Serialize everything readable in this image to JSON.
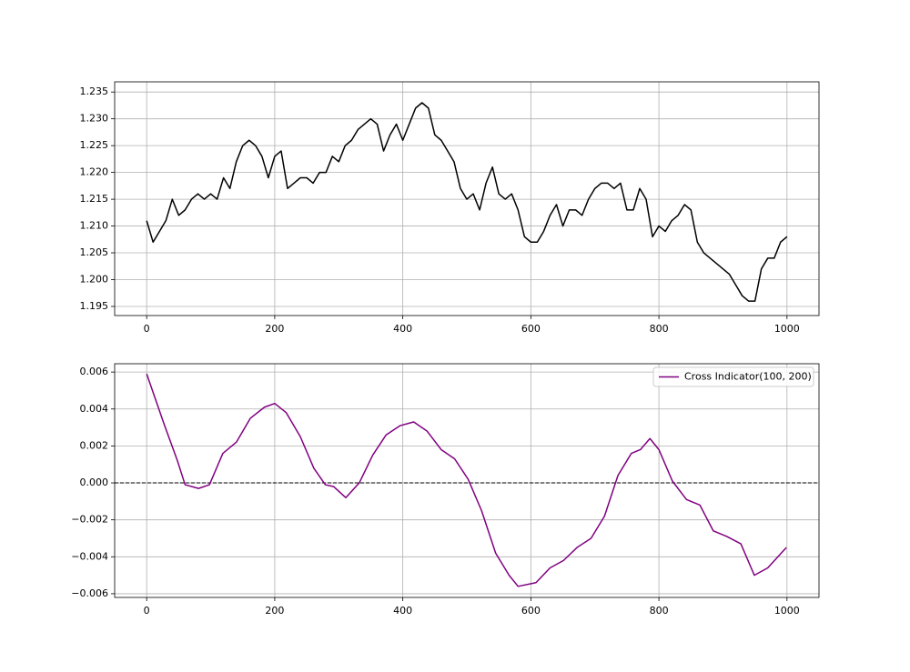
{
  "chart_data": [
    {
      "type": "line",
      "color": "#000000",
      "grid": true,
      "xlim": [
        -50,
        1050
      ],
      "ylim": [
        1.1933,
        1.2369
      ],
      "xticks": [
        0,
        200,
        400,
        600,
        800,
        1000
      ],
      "yticks": [
        1.195,
        {
          "value": 1.2,
          "label": "1.200"
        },
        1.205,
        {
          "value": 1.21,
          "label": "1.210"
        },
        1.215,
        {
          "value": 1.22,
          "label": "1.220"
        },
        1.225,
        {
          "value": 1.23,
          "label": "1.230"
        },
        1.235
      ],
      "x": [
        0,
        10,
        20,
        30,
        40,
        50,
        60,
        70,
        80,
        90,
        100,
        110,
        120,
        130,
        140,
        150,
        160,
        170,
        180,
        190,
        200,
        210,
        220,
        230,
        240,
        250,
        260,
        270,
        280,
        290,
        300,
        310,
        320,
        330,
        340,
        350,
        360,
        370,
        380,
        390,
        400,
        410,
        420,
        430,
        440,
        450,
        460,
        470,
        480,
        490,
        500,
        510,
        520,
        530,
        540,
        550,
        560,
        570,
        580,
        590,
        600,
        610,
        620,
        630,
        640,
        650,
        660,
        670,
        680,
        690,
        700,
        710,
        720,
        730,
        740,
        750,
        760,
        770,
        780,
        790,
        800,
        810,
        820,
        830,
        840,
        850,
        860,
        870,
        880,
        890,
        900,
        910,
        920,
        930,
        940,
        950,
        960,
        970,
        980,
        990,
        1000
      ],
      "values": [
        1.211,
        1.207,
        1.209,
        1.211,
        1.215,
        1.212,
        1.213,
        1.215,
        1.216,
        1.215,
        1.216,
        1.215,
        1.219,
        1.217,
        1.222,
        1.225,
        1.226,
        1.225,
        1.223,
        1.219,
        1.223,
        1.224,
        1.217,
        1.218,
        1.219,
        1.219,
        1.218,
        1.22,
        1.22,
        1.223,
        1.222,
        1.225,
        1.226,
        1.228,
        1.229,
        1.23,
        1.229,
        1.224,
        1.227,
        1.229,
        1.226,
        1.229,
        1.232,
        1.233,
        1.232,
        1.227,
        1.226,
        1.224,
        1.222,
        1.217,
        1.215,
        1.216,
        1.213,
        1.218,
        1.221,
        1.216,
        1.215,
        1.216,
        1.213,
        1.208,
        1.207,
        1.207,
        1.209,
        1.212,
        1.214,
        1.21,
        1.213,
        1.213,
        1.212,
        1.215,
        1.217,
        1.218,
        1.218,
        1.217,
        1.218,
        1.213,
        1.213,
        1.217,
        1.215,
        1.208,
        1.21,
        1.209,
        1.211,
        1.212,
        1.214,
        1.213,
        1.207,
        1.205,
        1.204,
        1.203,
        1.202,
        1.201,
        1.199,
        1.197,
        1.196,
        1.196,
        1.202,
        1.204,
        1.204,
        1.207,
        1.208
      ]
    },
    {
      "type": "line",
      "grid": true,
      "legend": "upper right",
      "hline": 0,
      "xlim": [
        -50,
        1050
      ],
      "ylim": [
        -0.0062,
        0.00645
      ],
      "xticks": [
        0,
        200,
        400,
        600,
        800,
        1000
      ],
      "yticks": [
        {
          "value": -0.006,
          "label": "−0.006"
        },
        {
          "value": -0.004,
          "label": "−0.004"
        },
        {
          "value": -0.002,
          "label": "−0.002"
        },
        {
          "value": 0,
          "label": "0.000"
        },
        0.002,
        0.004,
        0.006
      ],
      "x": [
        0,
        27,
        48,
        60,
        81,
        98,
        119,
        140,
        162,
        184,
        200,
        218,
        240,
        261,
        279,
        292,
        311,
        332,
        353,
        374,
        396,
        417,
        438,
        460,
        481,
        502,
        523,
        545,
        566,
        580,
        608,
        630,
        651,
        672,
        694,
        715,
        736,
        757,
        771,
        786,
        800,
        821,
        843,
        864,
        885,
        906,
        928,
        949,
        970,
        999
      ],
      "series": [
        {
          "name": "Cross Indicator(100, 200)",
          "color": "#800080",
          "values": [
            0.0059,
            0.0032,
            0.0012,
            -0.0001,
            -0.0003,
            -0.0001,
            0.0016,
            0.0022,
            0.0035,
            0.0041,
            0.0043,
            0.0038,
            0.0025,
            0.0008,
            -0.0001,
            -0.0002,
            -0.0008,
            0.0,
            0.0015,
            0.0026,
            0.0031,
            0.0033,
            0.0028,
            0.0018,
            0.0013,
            0.0002,
            -0.0015,
            -0.0038,
            -0.005,
            -0.0056,
            -0.0054,
            -0.0046,
            -0.0042,
            -0.0035,
            -0.003,
            -0.0018,
            0.0004,
            0.0016,
            0.0018,
            0.0024,
            0.0018,
            0.0001,
            -0.0009,
            -0.0012,
            -0.0026,
            -0.0029,
            -0.0033,
            -0.005,
            -0.0046,
            -0.0035
          ]
        }
      ]
    }
  ]
}
